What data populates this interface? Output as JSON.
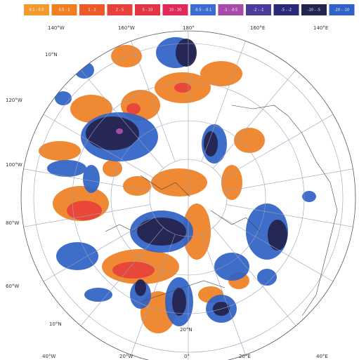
{
  "legend": {
    "items": [
      {
        "color": "#f29a2e",
        "label": "0.1 - 0.5"
      },
      {
        "color": "#ef7f22",
        "label": "0.5 - 1"
      },
      {
        "color": "#ec5a2a",
        "label": "1 - 2"
      },
      {
        "color": "#e8403a",
        "label": "2 - 5"
      },
      {
        "color": "#e33548",
        "label": "5 - 10"
      },
      {
        "color": "#e02a5a",
        "label": "10 - 20"
      },
      {
        "color": "#3d6cd0",
        "label": "-0.5 - -0.1"
      },
      {
        "color": "#a84aa8",
        "label": "-1 - -0.5"
      },
      {
        "color": "#4a3c9a",
        "label": "-2 - -1"
      },
      {
        "color": "#2a2a7a",
        "label": "-5 - -2"
      },
      {
        "color": "#24244e",
        "label": "-10 - -5"
      },
      {
        "color": "#2f62c6",
        "label": "-20 - -10"
      }
    ]
  },
  "labels": {
    "top": [
      "140°W",
      "160°W",
      "180°",
      "160°E",
      "140°E"
    ],
    "left": [
      "120°W",
      "100°W",
      "80°W",
      "60°W"
    ],
    "bottom": [
      "40°W",
      "20°W",
      "0°",
      "20°E",
      "40°E"
    ],
    "inner": [
      "10°N",
      "10°N",
      "20°N"
    ]
  }
}
